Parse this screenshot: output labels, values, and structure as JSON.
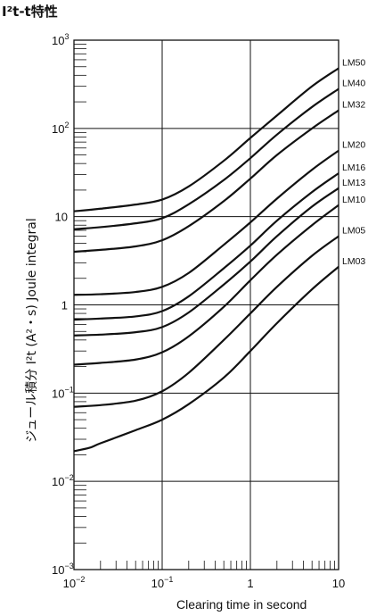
{
  "page": {
    "title": "I²t-t特性"
  },
  "chart_data": {
    "type": "line",
    "title": "I²t-t特性",
    "xlabel": "Clearing time in second",
    "ylabel": "ジュール積分 I²t (A²・s)  Joule integral",
    "xscale": "log",
    "yscale": "log",
    "xlim": [
      0.01,
      10
    ],
    "ylim": [
      0.001,
      1000
    ],
    "grid": true,
    "legend": "inline-right",
    "x_ticks": [
      {
        "value": 0.01,
        "base": "10",
        "exp": "−2"
      },
      {
        "value": 0.1,
        "base": "10",
        "exp": "−1"
      },
      {
        "value": 1,
        "base": "1",
        "exp": ""
      },
      {
        "value": 10,
        "base": "10",
        "exp": ""
      }
    ],
    "y_ticks": [
      {
        "value": 1000,
        "base": "10",
        "exp": "3"
      },
      {
        "value": 100,
        "base": "10",
        "exp": "2"
      },
      {
        "value": 10,
        "base": "10",
        "exp": ""
      },
      {
        "value": 1,
        "base": "1",
        "exp": ""
      },
      {
        "value": 0.1,
        "base": "10",
        "exp": "−1"
      },
      {
        "value": 0.01,
        "base": "10",
        "exp": "−2"
      },
      {
        "value": 0.001,
        "base": "10",
        "exp": "−3"
      }
    ],
    "series": [
      {
        "name": "LM50",
        "x": [
          0.01,
          0.02,
          0.05,
          0.1,
          0.2,
          0.5,
          1,
          2,
          5,
          10
        ],
        "values": [
          11.5,
          12.3,
          13.7,
          15.6,
          22,
          43,
          78,
          140,
          300,
          480
        ]
      },
      {
        "name": "LM40",
        "x": [
          0.01,
          0.02,
          0.05,
          0.1,
          0.2,
          0.5,
          1,
          2,
          5,
          10
        ],
        "values": [
          7.2,
          7.6,
          8.4,
          9.6,
          13.8,
          26,
          46,
          85,
          175,
          280
        ]
      },
      {
        "name": "LM32",
        "x": [
          0.01,
          0.02,
          0.05,
          0.1,
          0.2,
          0.5,
          1,
          2,
          5,
          10
        ],
        "values": [
          4.0,
          4.2,
          4.6,
          5.4,
          7.8,
          15,
          27,
          50,
          100,
          160
        ]
      },
      {
        "name": "LM20",
        "x": [
          0.01,
          0.02,
          0.05,
          0.1,
          0.2,
          0.5,
          1,
          2,
          5,
          10
        ],
        "values": [
          1.3,
          1.32,
          1.4,
          1.6,
          2.3,
          4.8,
          8.6,
          16,
          34,
          56
        ]
      },
      {
        "name": "LM16",
        "x": [
          0.01,
          0.02,
          0.05,
          0.1,
          0.2,
          0.5,
          1,
          2,
          5,
          10
        ],
        "values": [
          0.68,
          0.7,
          0.74,
          0.85,
          1.25,
          2.6,
          4.7,
          9,
          19,
          31
        ]
      },
      {
        "name": "LM13",
        "x": [
          0.01,
          0.02,
          0.05,
          0.1,
          0.2,
          0.5,
          1,
          2,
          5,
          10
        ],
        "values": [
          0.45,
          0.46,
          0.49,
          0.56,
          0.82,
          1.7,
          3.1,
          6,
          13,
          21
        ]
      },
      {
        "name": "LM10",
        "x": [
          0.01,
          0.02,
          0.05,
          0.1,
          0.2,
          0.5,
          1,
          2,
          5,
          10
        ],
        "values": [
          0.21,
          0.22,
          0.24,
          0.29,
          0.44,
          0.95,
          1.9,
          3.7,
          8,
          13.5
        ]
      },
      {
        "name": "LM05",
        "x": [
          0.01,
          0.02,
          0.05,
          0.1,
          0.2,
          0.5,
          1,
          2,
          5,
          10
        ],
        "values": [
          0.07,
          0.073,
          0.082,
          0.105,
          0.17,
          0.4,
          0.8,
          1.6,
          3.6,
          6
        ]
      },
      {
        "name": "LM03",
        "x": [
          0.01,
          0.015,
          0.02,
          0.05,
          0.1,
          0.2,
          0.5,
          1,
          2,
          5,
          10
        ],
        "values": [
          0.022,
          0.024,
          0.027,
          0.038,
          0.05,
          0.075,
          0.15,
          0.3,
          0.62,
          1.5,
          2.7
        ]
      }
    ]
  }
}
